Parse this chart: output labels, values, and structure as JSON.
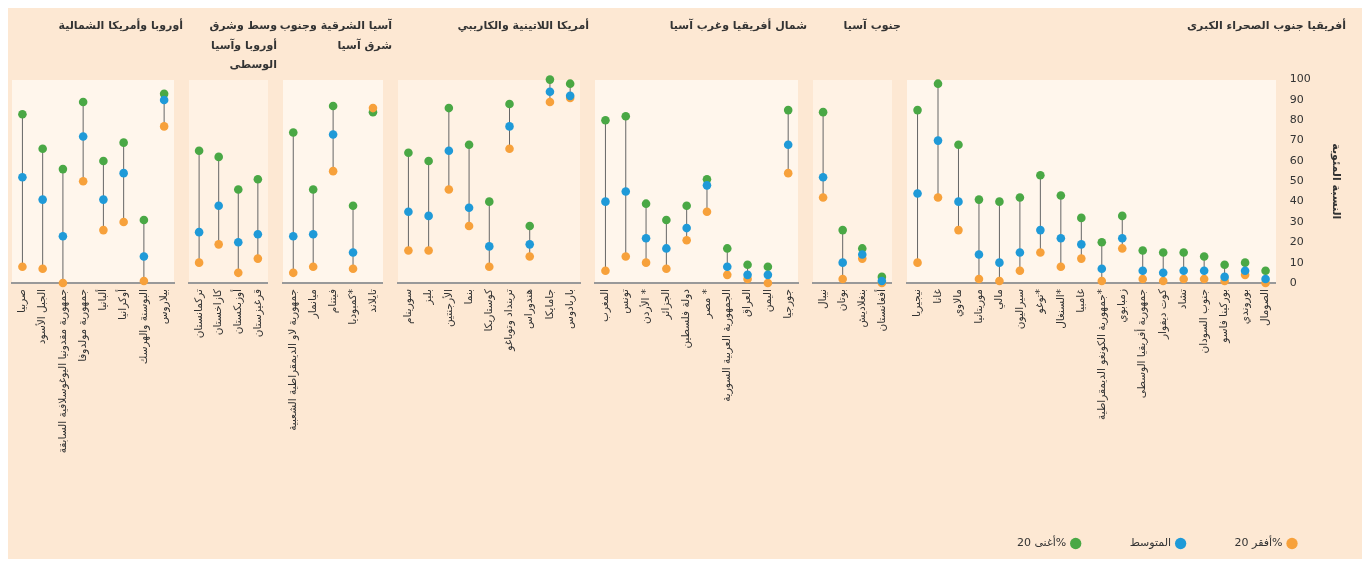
{
  "chart_data": [
    {
      "type": "scatter",
      "title": "أوروبا وأمريكا الشمالية",
      "ylim": [
        0,
        100
      ],
      "yticks": [
        0,
        10,
        20,
        30,
        40,
        50,
        60,
        70,
        80,
        90,
        100
      ],
      "marker": "circle",
      "tick_labels": "x",
      "categories": [
        "صربيا",
        "الجبل الأسود",
        "جمهورية مقدونيا اليوغوسلافية السابقة",
        "جمهورية مولدوفا",
        "ألبانيا",
        "أوكرانيا",
        "البوسنة والهرسك",
        "بيلاروس"
      ],
      "series": [
        {
          "color": "#f7a13b",
          "values": [
            8,
            7,
            0,
            50,
            26,
            30,
            1,
            77
          ]
        },
        {
          "color": "#1f9ad8",
          "values": [
            52,
            41,
            23,
            72,
            41,
            54,
            13,
            90
          ]
        },
        {
          "color": "#4aa845",
          "values": [
            83,
            66,
            56,
            89,
            60,
            69,
            31,
            93
          ]
        }
      ]
    },
    {
      "type": "scatter",
      "title": "وسط وشرق أوروبا وآسيا الوسطى",
      "ylim": [
        0,
        100
      ],
      "yticks": [
        0,
        10,
        20,
        30,
        40,
        50,
        60,
        70,
        80,
        90,
        100
      ],
      "marker": "circle",
      "tick_labels": "x",
      "categories": [
        "تركمانستان",
        "كازاخستان",
        "أوزبكستان",
        "قرغيزستان"
      ],
      "series": [
        {
          "color": "#f7a13b",
          "values": [
            10,
            19,
            5,
            12
          ]
        },
        {
          "color": "#1f9ad8",
          "values": [
            25,
            38,
            20,
            24
          ]
        },
        {
          "color": "#4aa845",
          "values": [
            65,
            62,
            46,
            51
          ]
        }
      ]
    },
    {
      "type": "scatter",
      "title": "آسيا الشرقية وجنوب شرق آسيا",
      "ylim": [
        0,
        100
      ],
      "yticks": [
        0,
        10,
        20,
        30,
        40,
        50,
        60,
        70,
        80,
        90,
        100
      ],
      "marker": "circle",
      "tick_labels": "x",
      "categories": [
        "جمهورية لاو الديمقراطية الشعبية",
        "ميانمار",
        "فيتنام",
        "كمبوديا*",
        "تايلاند"
      ],
      "series": [
        {
          "color": "#f7a13b",
          "values": [
            5,
            8,
            55,
            7,
            86
          ]
        },
        {
          "color": "#1f9ad8",
          "values": [
            23,
            24,
            73,
            15,
            null
          ]
        },
        {
          "color": "#4aa845",
          "values": [
            74,
            46,
            87,
            38,
            84
          ]
        }
      ]
    },
    {
      "type": "scatter",
      "title": "أمريكا اللاتينية والكاريبي",
      "ylim": [
        0,
        100
      ],
      "yticks": [
        0,
        10,
        20,
        30,
        40,
        50,
        60,
        70,
        80,
        90,
        100
      ],
      "marker": "circle",
      "tick_labels": "x",
      "categories": [
        "سورينام",
        "بليز",
        "الأرجنتين",
        "بنما",
        "كوستاريكا",
        "ترينداد وتوباغو",
        "هندوراس",
        "جامايكا",
        "باربادوس"
      ],
      "series": [
        {
          "color": "#f7a13b",
          "values": [
            16,
            16,
            46,
            28,
            8,
            66,
            13,
            89,
            91
          ]
        },
        {
          "color": "#1f9ad8",
          "values": [
            35,
            33,
            65,
            37,
            18,
            77,
            19,
            94,
            92
          ]
        },
        {
          "color": "#4aa845",
          "values": [
            64,
            60,
            86,
            68,
            40,
            88,
            28,
            100,
            98
          ]
        }
      ]
    },
    {
      "type": "scatter",
      "title": "شمال أفريقيا وغرب آسيا",
      "ylim": [
        0,
        100
      ],
      "yticks": [
        0,
        10,
        20,
        30,
        40,
        50,
        60,
        70,
        80,
        90,
        100
      ],
      "marker": "circle",
      "tick_labels": "x",
      "categories": [
        "المغرب",
        "تونس",
        "الأردن *",
        "الجزائر",
        "دولة فلسطين",
        "مصر *",
        "الجمهورية العربية السورية",
        "العراق",
        "اليمن",
        "جورجيا"
      ],
      "series": [
        {
          "color": "#f7a13b",
          "values": [
            6,
            13,
            10,
            7,
            21,
            35,
            4,
            2,
            0,
            54
          ]
        },
        {
          "color": "#1f9ad8",
          "values": [
            40,
            45,
            22,
            17,
            27,
            48,
            8,
            4,
            4,
            68
          ]
        },
        {
          "color": "#4aa845",
          "values": [
            80,
            82,
            39,
            31,
            38,
            51,
            17,
            9,
            8,
            85
          ]
        }
      ]
    },
    {
      "type": "scatter",
      "title": "جنوب آسيا",
      "ylim": [
        0,
        100
      ],
      "yticks": [
        0,
        10,
        20,
        30,
        40,
        50,
        60,
        70,
        80,
        90,
        100
      ],
      "marker": "circle",
      "tick_labels": "x",
      "categories": [
        "نيبال",
        "بوتان",
        "بنغلاديش",
        "أفغانستان"
      ],
      "series": [
        {
          "color": "#f7a13b",
          "values": [
            42,
            2,
            12,
            0
          ]
        },
        {
          "color": "#1f9ad8",
          "values": [
            52,
            10,
            14,
            1
          ]
        },
        {
          "color": "#4aa845",
          "values": [
            84,
            26,
            17,
            3
          ]
        }
      ]
    },
    {
      "type": "scatter",
      "title": "أفريقيا جنوب الصحراء الكبرى",
      "ylabel": "النسبة المئوية",
      "ylim": [
        0,
        100
      ],
      "yticks": [
        0,
        10,
        20,
        30,
        40,
        50,
        60,
        70,
        80,
        90,
        100
      ],
      "marker": "circle",
      "legend": "bottom right",
      "categories": [
        "نيجيريا",
        "غانا",
        "مالاوي",
        "موريتانيا",
        "مالي",
        "سيراليون",
        "توغو*",
        "السنغال*",
        "غامبيا",
        "جمهورية الكونغو الديمقراطية*",
        "زمبابوي",
        "جمهورية أفريقيا الوسطى",
        "كوت ديفوار",
        "تشاد",
        "جنوب السودان",
        "بوركينا فاسو",
        "بوروندي",
        "الصومال"
      ],
      "series": [
        {
          "name": "أفقر 20%",
          "color": "#f7a13b",
          "values": [
            10,
            42,
            26,
            2,
            1,
            6,
            15,
            8,
            12,
            1,
            17,
            2,
            1,
            2,
            2,
            1,
            4,
            0
          ]
        },
        {
          "name": "المتوسط",
          "color": "#1f9ad8",
          "values": [
            44,
            70,
            40,
            14,
            10,
            15,
            26,
            22,
            19,
            7,
            22,
            6,
            5,
            6,
            6,
            3,
            6,
            2
          ]
        },
        {
          "name": "أغنى 20%",
          "color": "#4aa845",
          "values": [
            85,
            98,
            68,
            41,
            40,
            42,
            53,
            43,
            32,
            20,
            33,
            16,
            15,
            15,
            13,
            9,
            10,
            6
          ]
        }
      ]
    }
  ]
}
